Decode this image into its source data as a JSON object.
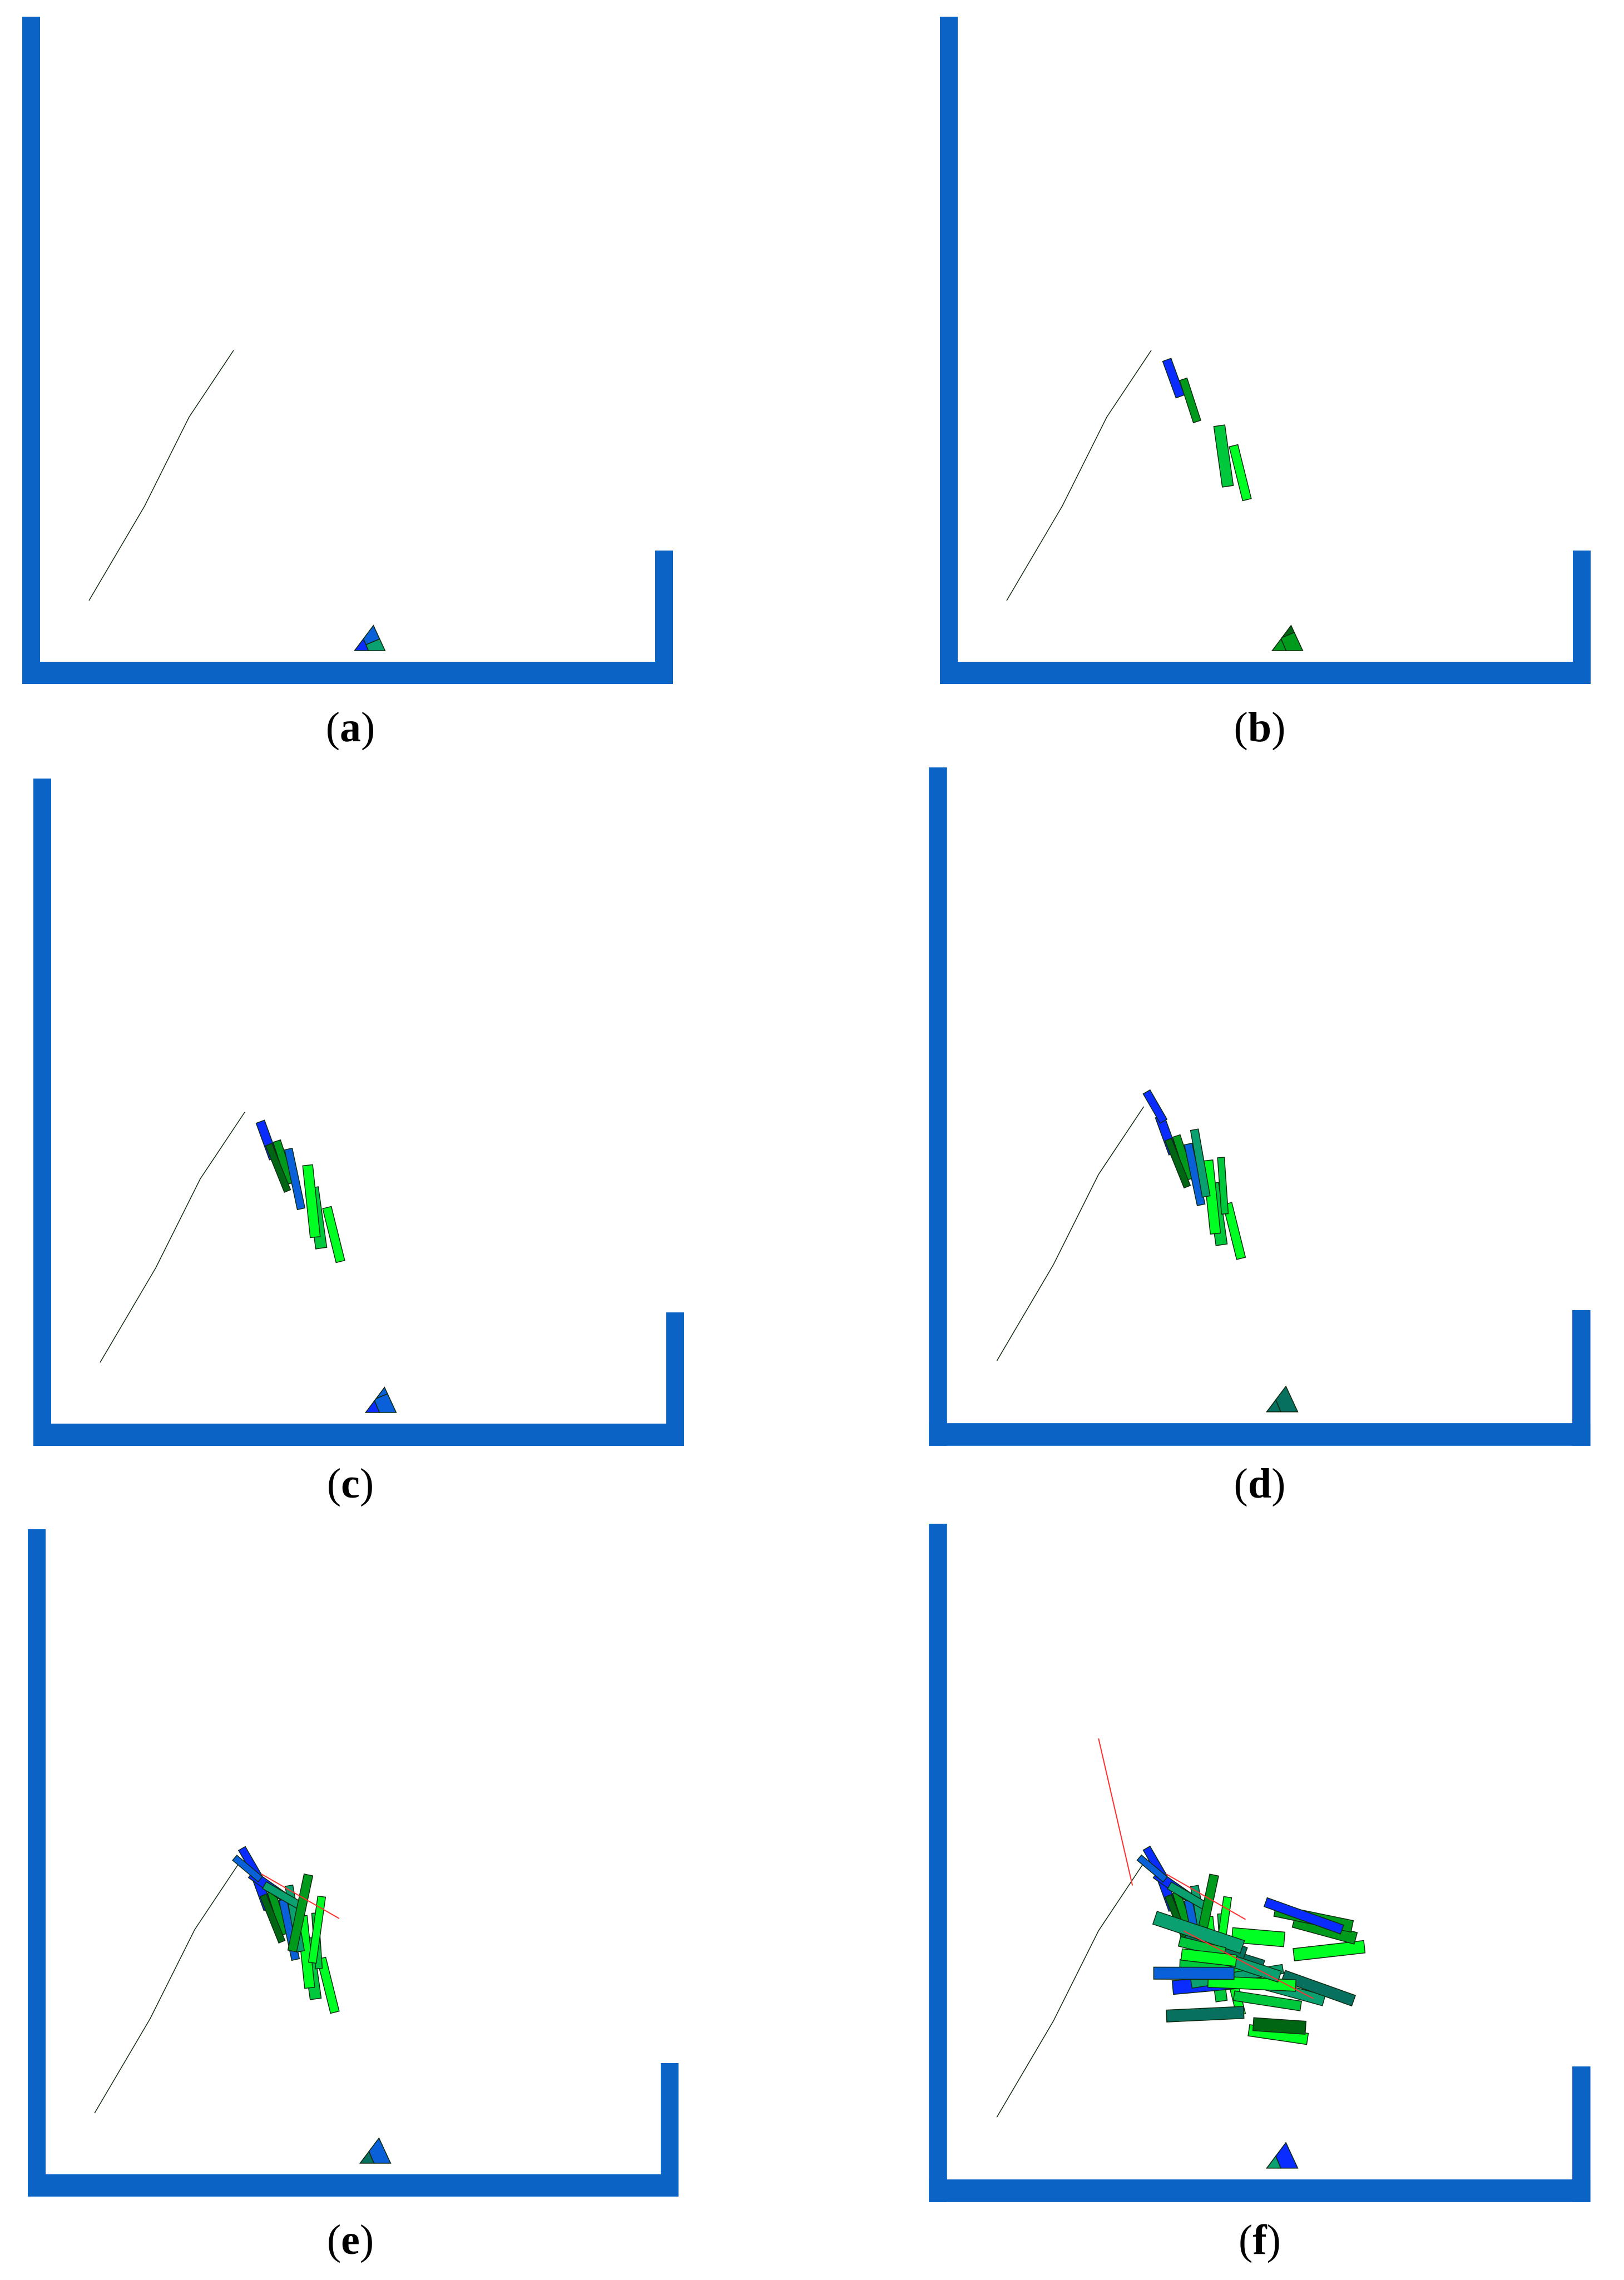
{
  "figure": {
    "colors": {
      "container": "#0b63c5",
      "block_palette": [
        "#00ff22",
        "#00c83c",
        "#009a1c",
        "#006614",
        "#0a2cff",
        "#0a60d8",
        "#0aa070",
        "#08705e"
      ],
      "edge": "#0f2a10",
      "trace": "#ff3030"
    },
    "panels": [
      {
        "id": "a",
        "label": "a",
        "stage": 0
      },
      {
        "id": "b",
        "label": "b",
        "stage": 1
      },
      {
        "id": "c",
        "label": "c",
        "stage": 2
      },
      {
        "id": "d",
        "label": "d",
        "stage": 3
      },
      {
        "id": "e",
        "label": "e",
        "stage": 4
      },
      {
        "id": "f",
        "label": "f",
        "stage": 5
      }
    ]
  }
}
